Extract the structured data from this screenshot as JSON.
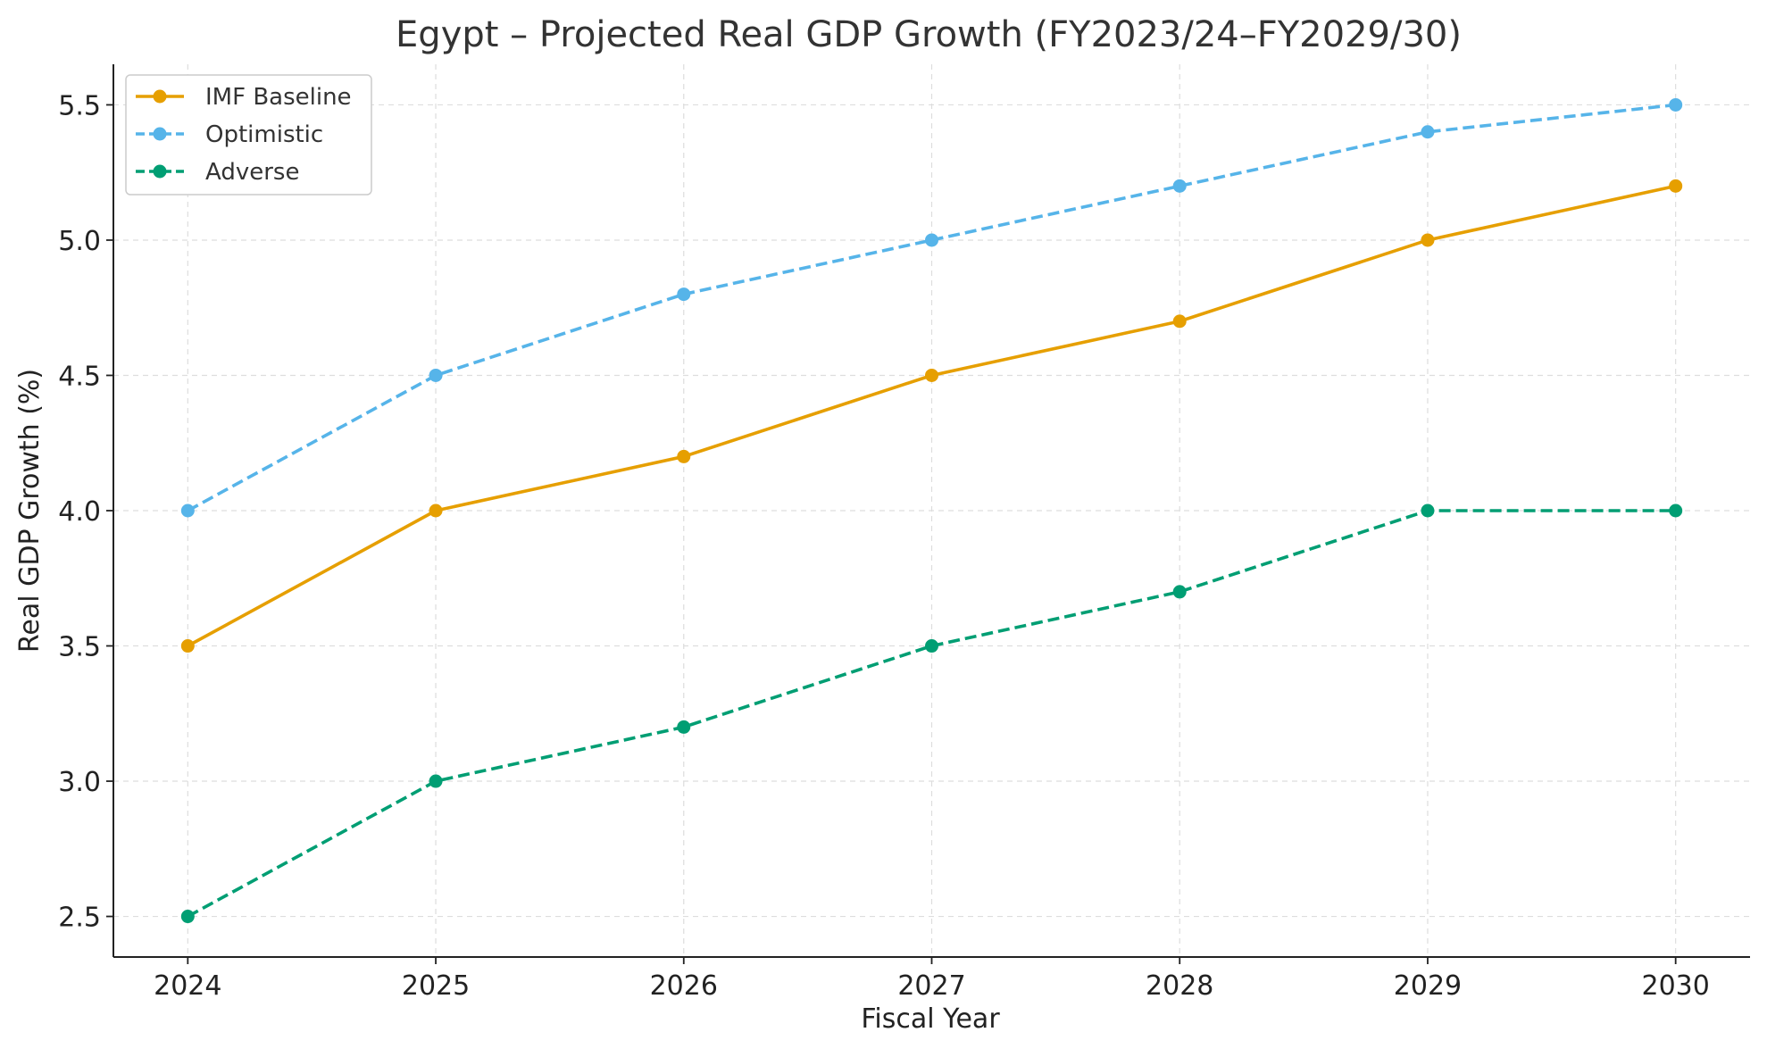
{
  "chart_data": {
    "type": "line",
    "title": "Egypt – Projected Real GDP Growth (FY2023/24–FY2029/30)",
    "xlabel": "Fiscal Year",
    "ylabel": "Real GDP Growth (%)",
    "x": [
      2024,
      2025,
      2026,
      2027,
      2028,
      2029,
      2030
    ],
    "x_tick_labels": [
      "2024",
      "2025",
      "2026",
      "2027",
      "2028",
      "2029",
      "2030"
    ],
    "y_ticks": [
      2.5,
      3.0,
      3.5,
      4.0,
      4.5,
      5.0,
      5.5
    ],
    "y_tick_labels": [
      "2.5",
      "3.0",
      "3.5",
      "4.0",
      "4.5",
      "5.0",
      "5.5"
    ],
    "xlim": [
      2023.7,
      2030.3
    ],
    "ylim": [
      2.35,
      5.65
    ],
    "grid": true,
    "legend_position": "top-left",
    "series": [
      {
        "name": "IMF Baseline",
        "values": [
          3.5,
          4.0,
          4.2,
          4.5,
          4.7,
          5.0,
          5.2
        ],
        "color": "#E69F00",
        "line_style": "solid"
      },
      {
        "name": "Optimistic",
        "values": [
          4.0,
          4.5,
          4.8,
          5.0,
          5.2,
          5.4,
          5.5
        ],
        "color": "#56B4E9",
        "line_style": "dashed"
      },
      {
        "name": "Adverse",
        "values": [
          2.5,
          3.0,
          3.2,
          3.5,
          3.7,
          4.0,
          4.0
        ],
        "color": "#009E73",
        "line_style": "dashed"
      }
    ]
  }
}
